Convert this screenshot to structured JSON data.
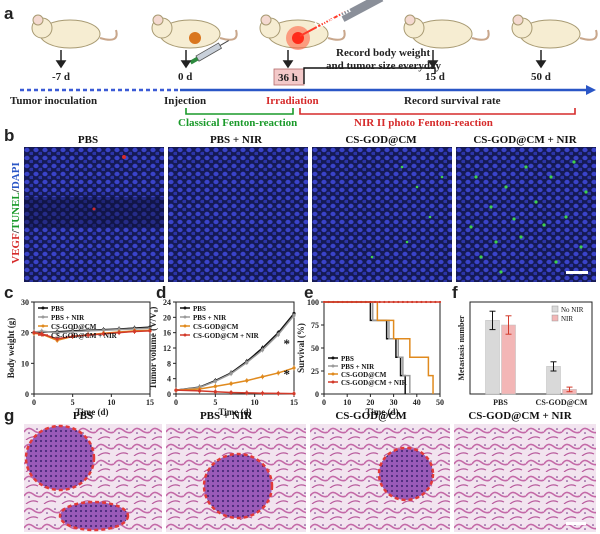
{
  "panel_labels": {
    "a": "a",
    "b": "b",
    "c": "c",
    "d": "d",
    "e": "e",
    "f": "f",
    "g": "g"
  },
  "timeline": {
    "laser_label": "1064 nm",
    "day_labels": [
      "-7 d",
      "0 d",
      "36 h",
      "15 d",
      "50 d"
    ],
    "record_text_line1": "Record body weight",
    "record_text_line2": "and tumor size everyday",
    "tumor_inoculation": "Tumor inoculation",
    "injection": "Injection",
    "irradiation": "Irradiation",
    "survival": "Record survival rate",
    "classical": "Classical Fenton-reaction",
    "nir_photo": "NIR II photo Fenton-reaction",
    "colors": {
      "dotted": "#3b5bd6",
      "arrow": "#2a56c6",
      "green": "#1a9a2a",
      "red": "#d62b2b"
    }
  },
  "panel_b": {
    "titles": [
      "PBS",
      "PBS + NIR",
      "CS-GOD@CM",
      "CS-GOD@CM + NIR"
    ],
    "ylabel_parts": [
      "VEGF",
      "/",
      "TUNEL",
      "/",
      "DAPI"
    ],
    "ylabel_colors": [
      "#d62b2b",
      "#333333",
      "#1a9a2a",
      "#333333",
      "#2a56c6"
    ]
  },
  "panel_g": {
    "titles": [
      "PBS",
      "PBS + NIR",
      "CS-GOD@CM",
      "CS-GOD@CM + NIR"
    ]
  },
  "series_colors": {
    "PBS": "#111111",
    "PBS + NIR": "#9a9a9a",
    "CS-GOD@CM": "#e08a1e",
    "CS-GOD@CM + NIR": "#d23a2a"
  },
  "chart_data": [
    {
      "type": "line",
      "panel": "c",
      "xlabel": "Time (d)",
      "ylabel": "Body weight (g)",
      "xlim": [
        0,
        15
      ],
      "ylim": [
        0,
        30
      ],
      "xticks": [
        0,
        5,
        10,
        15
      ],
      "yticks": [
        0,
        10,
        20,
        30
      ],
      "x": [
        0,
        1,
        3,
        5,
        7,
        9,
        11,
        13,
        15
      ],
      "legend": "top-left",
      "series": [
        {
          "name": "PBS",
          "values": [
            20.0,
            20.2,
            20.3,
            20.6,
            20.8,
            21.0,
            21.2,
            21.5,
            21.8
          ]
        },
        {
          "name": "PBS + NIR",
          "values": [
            20.2,
            20.5,
            20.0,
            20.3,
            20.6,
            20.8,
            21.0,
            21.2,
            21.5
          ]
        },
        {
          "name": "CS-GOD@CM",
          "values": [
            19.8,
            19.5,
            17.5,
            18.8,
            19.3,
            19.8,
            20.2,
            20.6,
            20.8
          ]
        },
        {
          "name": "CS-GOD@CM + NIR",
          "values": [
            20.0,
            19.6,
            18.0,
            18.8,
            19.2,
            19.6,
            20.0,
            20.4,
            20.6
          ]
        }
      ]
    },
    {
      "type": "line",
      "panel": "d",
      "xlabel": "Time (d)",
      "ylabel": "Tumor volume (V/V₀)",
      "xlim": [
        0,
        15
      ],
      "ylim": [
        0,
        24
      ],
      "xticks": [
        0,
        5,
        10,
        15
      ],
      "yticks": [
        0,
        4,
        8,
        12,
        16,
        20,
        24
      ],
      "x": [
        0,
        3,
        5,
        7,
        9,
        11,
        13,
        15
      ],
      "legend": "top-left",
      "annotations": [
        "*",
        "*"
      ],
      "series": [
        {
          "name": "PBS",
          "values": [
            1.0,
            1.8,
            3.5,
            5.5,
            8.5,
            12.0,
            16.0,
            21.0
          ]
        },
        {
          "name": "PBS + NIR",
          "values": [
            1.0,
            1.7,
            3.3,
            5.3,
            8.2,
            11.5,
            15.5,
            20.5
          ]
        },
        {
          "name": "CS-GOD@CM",
          "values": [
            1.0,
            1.3,
            2.0,
            2.7,
            3.5,
            4.5,
            5.5,
            6.8
          ]
        },
        {
          "name": "CS-GOD@CM + NIR",
          "values": [
            1.0,
            0.8,
            0.6,
            0.4,
            0.3,
            0.2,
            0.15,
            0.1
          ]
        }
      ]
    },
    {
      "type": "line",
      "panel": "e",
      "xlabel": "Time (d)",
      "ylabel": "Survival (%)",
      "xlim": [
        0,
        50
      ],
      "ylim": [
        0,
        100
      ],
      "xticks": [
        0,
        10,
        20,
        30,
        40,
        50
      ],
      "yticks": [
        0,
        25,
        50,
        75,
        100
      ],
      "legend": "bottom-left",
      "series": [
        {
          "name": "PBS",
          "steps": [
            [
              0,
              100
            ],
            [
              20,
              100
            ],
            [
              20,
              80
            ],
            [
              27,
              80
            ],
            [
              27,
              60
            ],
            [
              31,
              60
            ],
            [
              31,
              40
            ],
            [
              33,
              40
            ],
            [
              33,
              20
            ],
            [
              35,
              20
            ],
            [
              35,
              0
            ]
          ]
        },
        {
          "name": "PBS + NIR",
          "steps": [
            [
              0,
              100
            ],
            [
              21,
              100
            ],
            [
              21,
              80
            ],
            [
              28,
              80
            ],
            [
              28,
              60
            ],
            [
              32,
              60
            ],
            [
              32,
              40
            ],
            [
              34,
              40
            ],
            [
              34,
              20
            ],
            [
              37,
              20
            ],
            [
              37,
              0
            ]
          ]
        },
        {
          "name": "CS-GOD@CM",
          "steps": [
            [
              0,
              100
            ],
            [
              23,
              100
            ],
            [
              23,
              80
            ],
            [
              30,
              80
            ],
            [
              30,
              60
            ],
            [
              37,
              60
            ],
            [
              37,
              40
            ],
            [
              45,
              40
            ],
            [
              45,
              20
            ],
            [
              47,
              20
            ],
            [
              47,
              0
            ]
          ]
        },
        {
          "name": "CS-GOD@CM + NIR",
          "steps": [
            [
              0,
              100
            ],
            [
              50,
              100
            ]
          ]
        }
      ]
    },
    {
      "type": "bar",
      "panel": "f",
      "ylabel": "Metastasis number",
      "categories": [
        "PBS",
        "CS-GOD@CM"
      ],
      "legend": "top-right",
      "series": [
        {
          "name": "No NIR",
          "values": [
            16,
            6
          ],
          "errors": [
            2,
            1
          ]
        },
        {
          "name": "NIR",
          "values": [
            15,
            1
          ],
          "errors": [
            2,
            0.5
          ]
        }
      ]
    }
  ]
}
